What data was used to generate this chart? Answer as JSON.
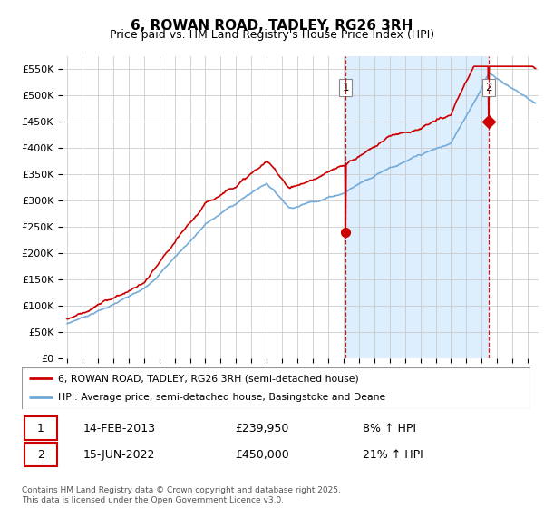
{
  "title": "6, ROWAN ROAD, TADLEY, RG26 3RH",
  "subtitle": "Price paid vs. HM Land Registry's House Price Index (HPI)",
  "ylim": [
    0,
    575000
  ],
  "yticks": [
    0,
    50000,
    100000,
    150000,
    200000,
    250000,
    300000,
    350000,
    400000,
    450000,
    500000,
    550000
  ],
  "ytick_labels": [
    "£0",
    "£50K",
    "£100K",
    "£150K",
    "£200K",
    "£250K",
    "£300K",
    "£350K",
    "£400K",
    "£450K",
    "£500K",
    "£550K"
  ],
  "hpi_color": "#6fa8d8",
  "price_color": "#cc0000",
  "grid_color": "#cccccc",
  "plot_bg_color": "#ffffff",
  "shade_color": "#ddeeff",
  "vline_color": "#cc0000",
  "sale1_year": 2013.12,
  "sale1_price": 239950,
  "sale1_label": "1",
  "sale2_year": 2022.45,
  "sale2_price": 450000,
  "sale2_label": "2",
  "legend_price_label": "6, ROWAN ROAD, TADLEY, RG26 3RH (semi-detached house)",
  "legend_hpi_label": "HPI: Average price, semi-detached house, Basingstoke and Deane",
  "annotation1_date": "14-FEB-2013",
  "annotation1_price": "£239,950",
  "annotation1_hpi": "8% ↑ HPI",
  "annotation2_date": "15-JUN-2022",
  "annotation2_price": "£450,000",
  "annotation2_hpi": "21% ↑ HPI",
  "copyright": "Contains HM Land Registry data © Crown copyright and database right 2025.\nThis data is licensed under the Open Government Licence v3.0.",
  "start_year": 1995,
  "end_year": 2025
}
